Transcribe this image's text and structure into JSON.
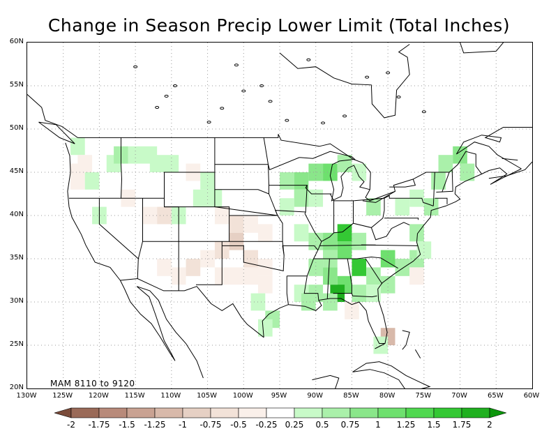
{
  "title": "Change in Season Precip Lower Limit (Total Inches)",
  "stamp": "MAM  8110  to  9120",
  "lat_ticks": [
    "60N",
    "55N",
    "50N",
    "45N",
    "40N",
    "35N",
    "30N",
    "25N",
    "20N"
  ],
  "lon_ticks": [
    "130W",
    "125W",
    "120W",
    "115W",
    "110W",
    "105W",
    "100W",
    "95W",
    "90W",
    "85W",
    "80W",
    "75W",
    "70W",
    "65W",
    "60W"
  ],
  "colorbar": {
    "labels": [
      "-2",
      "-1.75",
      "-1.5",
      "-1.25",
      "-1",
      "-0.75",
      "-0.5",
      "-0.25",
      "0.25",
      "0.5",
      "0.75",
      "1",
      "1.25",
      "1.5",
      "1.75",
      "2"
    ],
    "colors": [
      "#7a4b3a",
      "#9a6a58",
      "#b88a7a",
      "#c9a292",
      "#d8b9aa",
      "#e6d0c4",
      "#f2e2d8",
      "#faf0ea",
      "#ffffff",
      "#c8fac8",
      "#aaf0aa",
      "#8ae68a",
      "#6ee06e",
      "#50d850",
      "#34c834",
      "#20b020",
      "#0c960c"
    ]
  },
  "grid": true,
  "map_data": {
    "region": "Contiguous United States",
    "extent": {
      "lon": [
        -130,
        -60
      ],
      "lat": [
        20,
        60
      ]
    },
    "cells": [
      {
        "lon": -123,
        "lat": 48,
        "v": 0.3
      },
      {
        "lon": -122,
        "lat": 46,
        "v": -0.3
      },
      {
        "lon": -123,
        "lat": 45,
        "v": -0.3
      },
      {
        "lon": -123,
        "lat": 44,
        "v": -0.3
      },
      {
        "lon": -121,
        "lat": 44,
        "v": 0.3
      },
      {
        "lon": -118,
        "lat": 46,
        "v": 0.3
      },
      {
        "lon": -117,
        "lat": 47,
        "v": 0.6
      },
      {
        "lon": -115,
        "lat": 47,
        "v": 0.3
      },
      {
        "lon": -113,
        "lat": 47,
        "v": 0.3
      },
      {
        "lon": -112,
        "lat": 46,
        "v": 0.3
      },
      {
        "lon": -110,
        "lat": 46,
        "v": 0.3
      },
      {
        "lon": -107,
        "lat": 45,
        "v": -0.3
      },
      {
        "lon": -105,
        "lat": 44,
        "v": 0.3
      },
      {
        "lon": -104,
        "lat": 42,
        "v": 0.3
      },
      {
        "lon": -106,
        "lat": 42,
        "v": 0.3
      },
      {
        "lon": -120,
        "lat": 40,
        "v": 0.3
      },
      {
        "lon": -116,
        "lat": 42,
        "v": -0.3
      },
      {
        "lon": -113,
        "lat": 40,
        "v": -0.3
      },
      {
        "lon": -111,
        "lat": 40,
        "v": -0.6
      },
      {
        "lon": -109,
        "lat": 40,
        "v": 0.3
      },
      {
        "lon": -103,
        "lat": 40,
        "v": -0.3
      },
      {
        "lon": -101,
        "lat": 39,
        "v": -0.6
      },
      {
        "lon": -99,
        "lat": 39,
        "v": -0.3
      },
      {
        "lon": -97,
        "lat": 38,
        "v": -0.3
      },
      {
        "lon": -101,
        "lat": 37,
        "v": -0.9
      },
      {
        "lon": -103,
        "lat": 36,
        "v": -0.6
      },
      {
        "lon": -105,
        "lat": 35,
        "v": -0.3
      },
      {
        "lon": -107,
        "lat": 34,
        "v": -0.6
      },
      {
        "lon": -109,
        "lat": 33,
        "v": -0.3
      },
      {
        "lon": -111,
        "lat": 34,
        "v": -0.3
      },
      {
        "lon": -99,
        "lat": 35,
        "v": -0.6
      },
      {
        "lon": -97,
        "lat": 34,
        "v": -0.3
      },
      {
        "lon": -99,
        "lat": 33,
        "v": -0.3
      },
      {
        "lon": -101,
        "lat": 33,
        "v": -0.3
      },
      {
        "lon": -103,
        "lat": 33,
        "v": -0.3
      },
      {
        "lon": -97,
        "lat": 32,
        "v": -0.3
      },
      {
        "lon": -98,
        "lat": 30,
        "v": 0.3
      },
      {
        "lon": -96,
        "lat": 28,
        "v": 0.6
      },
      {
        "lon": -97,
        "lat": 27,
        "v": 0.3
      },
      {
        "lon": -94,
        "lat": 44,
        "v": 0.6
      },
      {
        "lon": -92,
        "lat": 44,
        "v": 0.9
      },
      {
        "lon": -90,
        "lat": 45,
        "v": 0.9
      },
      {
        "lon": -88,
        "lat": 45,
        "v": 1.2
      },
      {
        "lon": -86,
        "lat": 46,
        "v": 0.6
      },
      {
        "lon": -84,
        "lat": 45,
        "v": 0.3
      },
      {
        "lon": -90,
        "lat": 42,
        "v": 0.3
      },
      {
        "lon": -92,
        "lat": 42,
        "v": 0.6
      },
      {
        "lon": -94,
        "lat": 41,
        "v": 0.3
      },
      {
        "lon": -92,
        "lat": 38,
        "v": 0.3
      },
      {
        "lon": -90,
        "lat": 37,
        "v": 0.6
      },
      {
        "lon": -88,
        "lat": 37,
        "v": 0.9
      },
      {
        "lon": -86,
        "lat": 38,
        "v": 1.5
      },
      {
        "lon": -84,
        "lat": 37,
        "v": 0.6
      },
      {
        "lon": -86,
        "lat": 36,
        "v": 1.0
      },
      {
        "lon": -88,
        "lat": 35,
        "v": 0.6
      },
      {
        "lon": -90,
        "lat": 34,
        "v": 0.6
      },
      {
        "lon": -88,
        "lat": 33,
        "v": 0.9
      },
      {
        "lon": -86,
        "lat": 32,
        "v": 1.2
      },
      {
        "lon": -87,
        "lat": 31,
        "v": 1.8
      },
      {
        "lon": -84,
        "lat": 34,
        "v": 1.5
      },
      {
        "lon": -82,
        "lat": 33,
        "v": 0.6
      },
      {
        "lon": -80,
        "lat": 35,
        "v": 1.2
      },
      {
        "lon": -78,
        "lat": 34,
        "v": 0.6
      },
      {
        "lon": -76,
        "lat": 35,
        "v": 0.6
      },
      {
        "lon": -80,
        "lat": 32,
        "v": 0.6
      },
      {
        "lon": -82,
        "lat": 31,
        "v": 0.3
      },
      {
        "lon": -84,
        "lat": 31,
        "v": 0.6
      },
      {
        "lon": -90,
        "lat": 31,
        "v": 0.6
      },
      {
        "lon": -92,
        "lat": 31,
        "v": 0.3
      },
      {
        "lon": -88,
        "lat": 30,
        "v": 0.6
      },
      {
        "lon": -91,
        "lat": 30,
        "v": 0.6
      },
      {
        "lon": -85,
        "lat": 29,
        "v": -0.3
      },
      {
        "lon": -80,
        "lat": 26,
        "v": -1.2
      },
      {
        "lon": -81,
        "lat": 25,
        "v": 0.3
      },
      {
        "lon": -82,
        "lat": 41,
        "v": 0.6
      },
      {
        "lon": -78,
        "lat": 41,
        "v": 0.3
      },
      {
        "lon": -76,
        "lat": 42,
        "v": 0.3
      },
      {
        "lon": -73,
        "lat": 44,
        "v": 0.6
      },
      {
        "lon": -72,
        "lat": 46,
        "v": 0.6
      },
      {
        "lon": -70,
        "lat": 47,
        "v": 0.9
      },
      {
        "lon": -69,
        "lat": 45,
        "v": 0.6
      },
      {
        "lon": -74,
        "lat": 41,
        "v": 0.6
      },
      {
        "lon": -76,
        "lat": 38,
        "v": 0.6
      },
      {
        "lon": -75,
        "lat": 36,
        "v": 0.3
      },
      {
        "lon": -76,
        "lat": 33,
        "v": -0.3
      }
    ]
  }
}
